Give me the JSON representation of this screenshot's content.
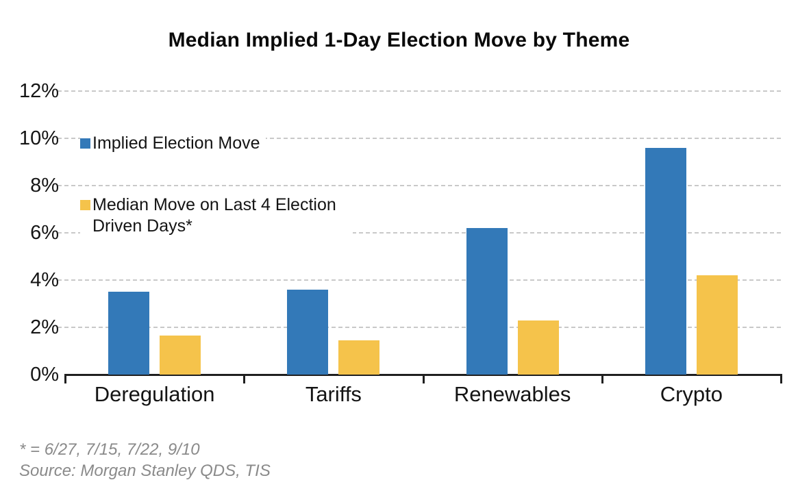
{
  "title": "Median Implied 1-Day Election Move by Theme",
  "chart_data": {
    "type": "bar",
    "categories": [
      "Deregulation",
      "Tariffs",
      "Renewables",
      "Crypto"
    ],
    "series": [
      {
        "name": "Implied Election Move",
        "color": "#3379B8",
        "values": [
          3.5,
          3.6,
          6.2,
          9.6
        ]
      },
      {
        "name": "Median Move on Last 4 Election Driven Days*",
        "color": "#F5C34B",
        "values": [
          1.65,
          1.45,
          2.3,
          4.2
        ]
      }
    ],
    "y_axis": {
      "ticks": [
        "0%",
        "2%",
        "4%",
        "6%",
        "8%",
        "10%",
        "12%"
      ],
      "min": 0,
      "max": 12,
      "step": 2,
      "unit": "%"
    },
    "grid": "horizontal-dashed",
    "legend_position": "inside-top-left"
  },
  "footnotes": {
    "asterisk": "* = 6/27, 7/15, 7/22, 9/10",
    "source": "Source: Morgan Stanley QDS, TIS"
  },
  "colors": {
    "background": "#FFFFFF",
    "bar_blue": "#3379B8",
    "bar_yellow": "#F5C34B",
    "gridline": "#C9C9C9",
    "axis": "#1F1F1F",
    "text": "#141414",
    "footnote_text": "#8A8A8A"
  }
}
